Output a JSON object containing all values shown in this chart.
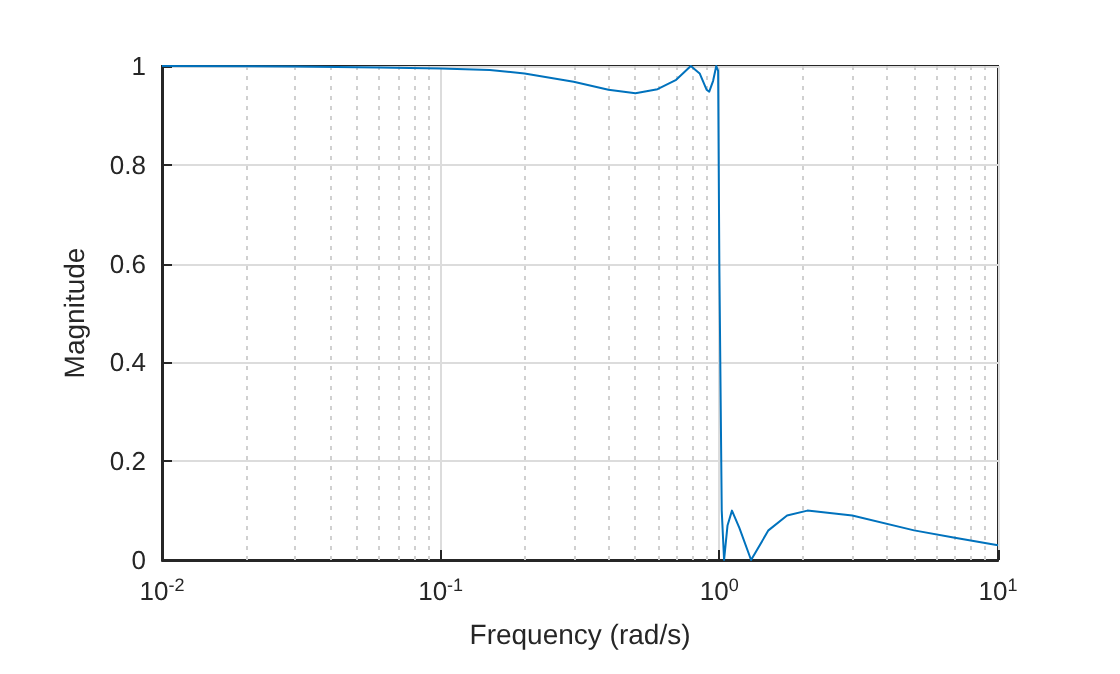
{
  "chart_data": {
    "type": "line",
    "xlabel": "Frequency (rad/s)",
    "ylabel": "Magnitude",
    "log": "x",
    "grid": true,
    "marker": "none",
    "line_style": "solid",
    "xlim": [
      0.01,
      10
    ],
    "xticks": [
      {
        "value": 0.01,
        "label": "10$^{-2}$"
      },
      {
        "value": 0.1,
        "label": "10$^{-1}$"
      },
      {
        "value": 1,
        "label": "10$^{0}$"
      },
      {
        "value": 10,
        "label": "10$^{1}$"
      }
    ],
    "ylim": [
      0,
      1
    ],
    "yticks": [
      0,
      0.2,
      0.4,
      0.6,
      0.8,
      1
    ],
    "series": [
      {
        "color": "#0072bd",
        "x": [
          0.01,
          0.03,
          0.06,
          0.1,
          0.15,
          0.2,
          0.3,
          0.4,
          0.5,
          0.6,
          0.7,
          0.79,
          0.85,
          0.9,
          0.92,
          0.95,
          0.975,
          0.99,
          1.0,
          1.02,
          1.04,
          1.07,
          1.11,
          1.18,
          1.3,
          1.5,
          1.75,
          2.07,
          3,
          5,
          7,
          10
        ],
        "values": [
          1.0,
          0.999,
          0.997,
          0.995,
          0.992,
          0.985,
          0.968,
          0.952,
          0.945,
          0.953,
          0.972,
          1.0,
          0.985,
          0.952,
          0.948,
          0.97,
          1.0,
          0.99,
          0.6,
          0.1,
          0.0,
          0.07,
          0.1,
          0.065,
          0.0,
          0.06,
          0.09,
          0.1,
          0.09,
          0.06,
          0.045,
          0.03
        ]
      }
    ]
  }
}
